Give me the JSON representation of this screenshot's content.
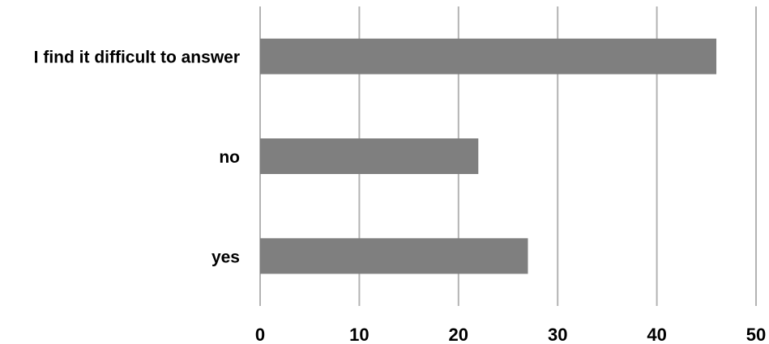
{
  "chart_data": {
    "type": "bar",
    "orientation": "horizontal",
    "categories": [
      "I find it difficult to answer",
      "no",
      "yes"
    ],
    "values": [
      46,
      22,
      27
    ],
    "xlim": [
      0,
      50
    ],
    "xticks": [
      0,
      10,
      20,
      30,
      40,
      50
    ],
    "grid": "vertical",
    "legend": "none",
    "title": "",
    "xlabel": "",
    "ylabel": ""
  },
  "colors": {
    "bar": "#7f7f7f",
    "gridline": "#b3b3b3"
  }
}
